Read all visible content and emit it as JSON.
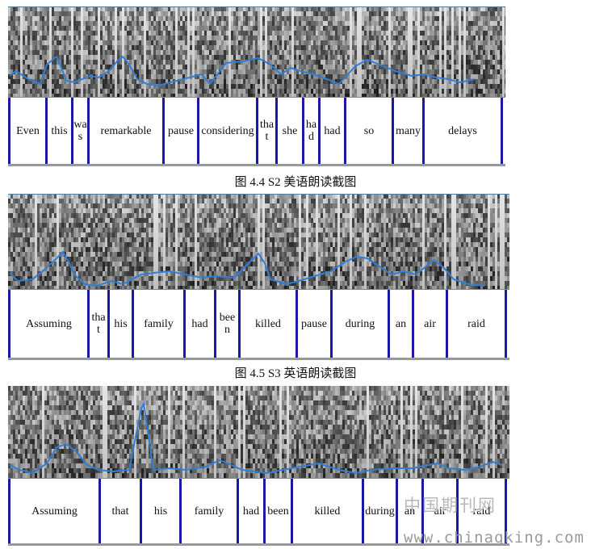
{
  "figures": [
    {
      "id": "s2",
      "words": [
        "Even",
        "this",
        "wa s",
        "remarkable",
        "pause",
        "considering",
        "tha t",
        "she",
        "ha d",
        "had",
        "so",
        "many",
        "delays"
      ],
      "caption": "图 4.4 S2 美语朗读截图"
    },
    {
      "id": "s3",
      "words": [
        "Assuming",
        "tha t",
        "his",
        "family",
        "had",
        "bee n",
        "killed",
        "pause",
        "during",
        "an",
        "air",
        "raid"
      ],
      "caption": "图 4.5 S3 英语朗读截图"
    },
    {
      "id": "s4",
      "words": [
        "Assuming",
        "that",
        "his",
        "family",
        "had",
        "been",
        "killed",
        "during",
        "an",
        "air",
        "raid"
      ],
      "caption": ""
    }
  ],
  "watermark": {
    "cn": "中国期刊网",
    "url": "www.chinaqking.com"
  },
  "colors": {
    "pitch": "#2f7fd6",
    "boundary": "#1a1aa8"
  }
}
